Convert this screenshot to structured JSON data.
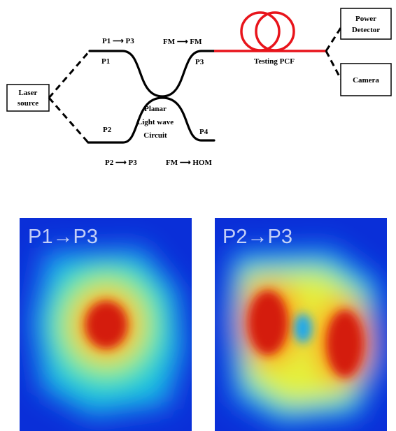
{
  "diagram": {
    "laser_source": [
      "Laser",
      "source"
    ],
    "power_detector": [
      "Power",
      "Detector"
    ],
    "camera": "Camera",
    "testing_pcf": "Testing PCF",
    "plc": [
      "Planar",
      "Light wave",
      "Circuit"
    ],
    "ports": {
      "p1": "P1",
      "p2": "P2",
      "p3": "P3",
      "p4": "P4"
    },
    "transitions": {
      "p1_to_p3": "P1 ⟶ P3",
      "p2_to_p3": "P2 ⟶ P3",
      "fm_to_fm": "FM ⟶ FM",
      "fm_to_hom": "FM ⟶ HOM"
    }
  },
  "panels": {
    "left_title": "P1→P3",
    "right_title": "P2→P3"
  },
  "colors": {
    "fiber_red": "#e8141b",
    "mode_blue": "#0a2fd8",
    "mode_red": "#d41a08"
  }
}
